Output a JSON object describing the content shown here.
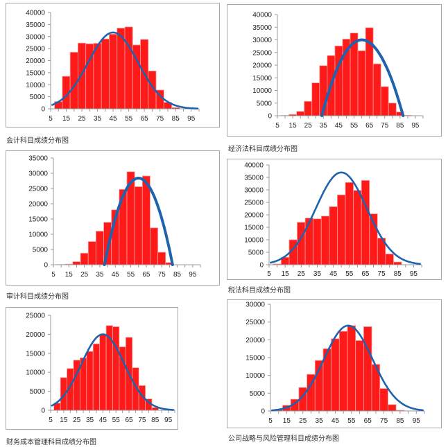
{
  "colors": {
    "bar": "#ff1a1a",
    "bar_edge": "#f4a0a0",
    "curve": "#1f62ad",
    "axis": "#999999"
  },
  "chart_data": [
    {
      "type": "bar",
      "title": "会计科目成绩分布图",
      "xlabel": "",
      "ylabel": "",
      "x_ticks": [
        5,
        15,
        25,
        35,
        45,
        55,
        65,
        75,
        85,
        95
      ],
      "y_ticks": [
        0,
        5000,
        10000,
        15000,
        20000,
        25000,
        30000,
        35000,
        40000
      ],
      "xlim": [
        5,
        100
      ],
      "ylim": [
        0,
        40000
      ],
      "bin_width": 5,
      "categories": [
        10,
        15,
        20,
        25,
        30,
        35,
        40,
        45,
        50,
        55,
        60,
        65,
        70,
        75,
        80,
        85
      ],
      "values": [
        3000,
        13500,
        23500,
        27300,
        27000,
        27200,
        29000,
        31000,
        33500,
        34000,
        26500,
        28800,
        15700,
        7800,
        2700,
        500
      ],
      "curve": {
        "type": "normal",
        "mean": 45,
        "sd": 16,
        "peak": 31700,
        "x_range": [
          6,
          99
        ]
      }
    },
    {
      "type": "bar",
      "title": "经济法科目成绩分布图",
      "xlabel": "",
      "ylabel": "",
      "x_ticks": [
        5,
        15,
        25,
        35,
        45,
        55,
        65,
        75,
        85,
        95
      ],
      "y_ticks": [
        0,
        5000,
        10000,
        15000,
        20000,
        25000,
        30000,
        35000,
        40000
      ],
      "xlim": [
        5,
        100
      ],
      "ylim": [
        0,
        40000
      ],
      "bin_width": 5,
      "categories": [
        10,
        15,
        20,
        25,
        30,
        35,
        40,
        45,
        50,
        55,
        60,
        65,
        70,
        75,
        80,
        85,
        90
      ],
      "values": [
        100,
        500,
        1700,
        5700,
        13000,
        19800,
        23800,
        27600,
        30300,
        32700,
        25700,
        34800,
        20500,
        11500,
        5000,
        1500,
        200
      ],
      "curve": {
        "type": "normal",
        "mean": 60,
        "sd": 13,
        "peak": 30000,
        "x_range": [
          34,
          87
        ]
      }
    },
    {
      "type": "bar",
      "title": "审计科目成绩分布图",
      "xlabel": "",
      "ylabel": "",
      "x_ticks": [
        5,
        15,
        25,
        35,
        45,
        55,
        65,
        75,
        85,
        95
      ],
      "y_ticks": [
        0,
        5000,
        10000,
        15000,
        20000,
        25000,
        30000,
        35000
      ],
      "xlim": [
        5,
        100
      ],
      "ylim": [
        0,
        35000
      ],
      "bin_width": 5,
      "categories": [
        10,
        15,
        20,
        25,
        30,
        35,
        40,
        45,
        50,
        55,
        60,
        65,
        70,
        75,
        80
      ],
      "values": [
        50,
        200,
        1000,
        3800,
        7600,
        11000,
        13900,
        18000,
        24700,
        30500,
        25600,
        29100,
        12100,
        4100,
        700
      ],
      "curve": {
        "type": "normal",
        "mean": 60,
        "sd": 11,
        "peak": 28400,
        "x_range": [
          38,
          82
        ]
      }
    },
    {
      "type": "bar",
      "title": "税法科目成绩分布图",
      "xlabel": "",
      "ylabel": "",
      "x_ticks": [
        5,
        15,
        25,
        35,
        45,
        55,
        65,
        75,
        85,
        95
      ],
      "y_ticks": [
        0,
        5000,
        10000,
        15000,
        20000,
        25000,
        30000,
        35000,
        40000
      ],
      "xlim": [
        5,
        100
      ],
      "ylim": [
        0,
        40000
      ],
      "bin_width": 5,
      "categories": [
        10,
        15,
        20,
        25,
        30,
        35,
        40,
        45,
        50,
        55,
        60,
        65,
        70,
        75,
        80,
        85
      ],
      "values": [
        300,
        3000,
        10000,
        17000,
        18700,
        18400,
        19500,
        23300,
        28000,
        33000,
        29800,
        33800,
        20400,
        10700,
        4300,
        1100
      ],
      "curve": {
        "type": "normal",
        "mean": 50,
        "sd": 16,
        "peak": 37000,
        "x_range": [
          6,
          99
        ]
      }
    },
    {
      "type": "bar",
      "title": "财务成本管理科目成绩分布图",
      "xlabel": "",
      "ylabel": "",
      "x_ticks": [
        5,
        15,
        25,
        35,
        45,
        55,
        65,
        75,
        85,
        95
      ],
      "y_ticks": [
        0,
        5000,
        10000,
        15000,
        20000,
        25000
      ],
      "xlim": [
        5,
        100
      ],
      "ylim": [
        0,
        25000
      ],
      "bin_width": 5,
      "categories": [
        10,
        15,
        20,
        25,
        30,
        35,
        40,
        45,
        50,
        55,
        60,
        65,
        70,
        75,
        80,
        85
      ],
      "values": [
        1900,
        8600,
        11000,
        13200,
        13800,
        15500,
        17500,
        20000,
        22300,
        22000,
        16700,
        19200,
        11200,
        6500,
        3000,
        700
      ],
      "curve": {
        "type": "normal",
        "mean": 45,
        "sd": 16.5,
        "peak": 20000,
        "x_range": [
          6,
          99
        ]
      }
    },
    {
      "type": "bar",
      "title": "公司战略与风险管理科目成绩分布图",
      "xlabel": "",
      "ylabel": "",
      "x_ticks": [
        5,
        15,
        25,
        35,
        45,
        55,
        65,
        75,
        85,
        95
      ],
      "y_ticks": [
        0,
        5000,
        10000,
        15000,
        20000,
        25000,
        30000
      ],
      "xlim": [
        5,
        100
      ],
      "ylim": [
        0,
        30000
      ],
      "bin_width": 5,
      "categories": [
        10,
        15,
        20,
        25,
        30,
        35,
        40,
        45,
        50,
        55,
        60,
        65,
        70,
        75,
        80,
        85
      ],
      "values": [
        300,
        1600,
        3300,
        6600,
        10300,
        14200,
        17500,
        20300,
        22400,
        24000,
        19800,
        23700,
        13100,
        6300,
        1800,
        200
      ],
      "curve": {
        "type": "normal",
        "mean": 53,
        "sd": 15,
        "peak": 24000,
        "x_range": [
          6,
          99
        ]
      }
    }
  ]
}
